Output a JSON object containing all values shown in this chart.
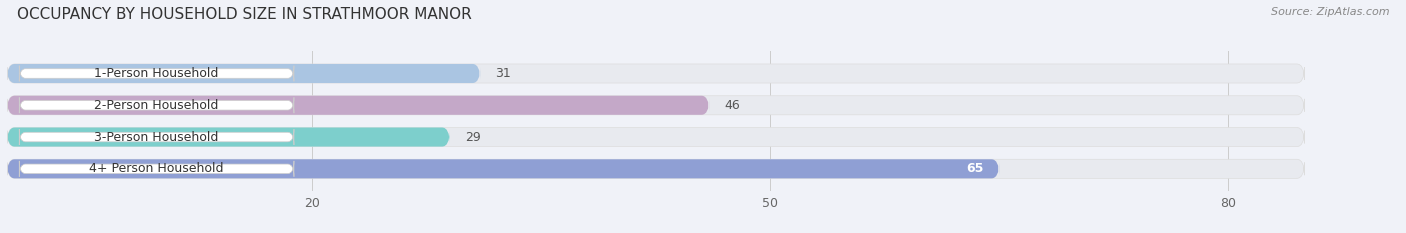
{
  "title": "OCCUPANCY BY HOUSEHOLD SIZE IN STRATHMOOR MANOR",
  "source": "Source: ZipAtlas.com",
  "categories": [
    "1-Person Household",
    "2-Person Household",
    "3-Person Household",
    "4+ Person Household"
  ],
  "values": [
    31,
    46,
    29,
    65
  ],
  "bar_colors": [
    "#aac5e2",
    "#c4a8c8",
    "#7dcfcc",
    "#8f9fd4"
  ],
  "value_text_colors": [
    "#555555",
    "#555555",
    "#555555",
    "#ffffff"
  ],
  "xlim_min": 0,
  "xlim_max": 85,
  "xticks": [
    20,
    50,
    80
  ],
  "background_color": "#f0f2f8",
  "bar_bg_color": "#e8eaef",
  "label_bg_color": "#ffffff",
  "grid_color": "#cccccc",
  "title_color": "#333333",
  "source_color": "#888888",
  "label_text_color": "#333333",
  "title_fontsize": 11,
  "tick_fontsize": 9,
  "label_fontsize": 9,
  "value_fontsize": 9,
  "bar_height": 0.6
}
